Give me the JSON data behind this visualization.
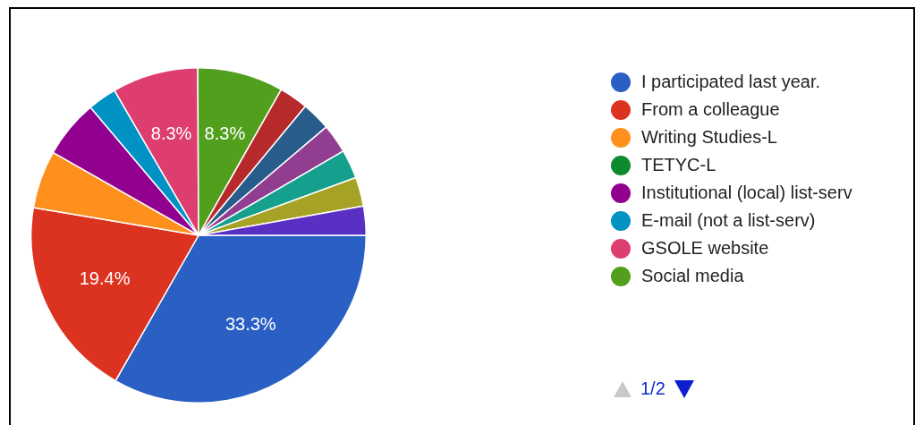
{
  "chart_data": {
    "type": "pie",
    "categories": [
      "I participated last year.",
      "From a colleague",
      "Writing Studies-L",
      "TETYC-L",
      "Institutional (local) list-serv",
      "E-mail (not a list-serv)",
      "GSOLE website",
      "Social media",
      null,
      null,
      null,
      null,
      null,
      null
    ],
    "values": [
      33.3,
      19.4,
      5.6,
      0,
      5.6,
      2.8,
      8.3,
      8.3,
      2.8,
      2.8,
      2.8,
      2.8,
      2.8,
      2.8
    ],
    "colors": [
      "#2a5fc4",
      "#dc3320",
      "#ff901e",
      "#0d8a2e",
      "#920090",
      "#0092c3",
      "#de3d6f",
      "#529f1e",
      "#b62a2c",
      "#285c8a",
      "#913e91",
      "#14a08c",
      "#a6a226",
      "#5a2fc3"
    ],
    "value_labels": [
      "33.3%",
      "19.4%",
      null,
      null,
      null,
      null,
      "8.3%",
      "8.3%",
      null,
      null,
      null,
      null,
      null,
      null
    ],
    "legend": "right",
    "annotations": [
      "1/2"
    ]
  }
}
